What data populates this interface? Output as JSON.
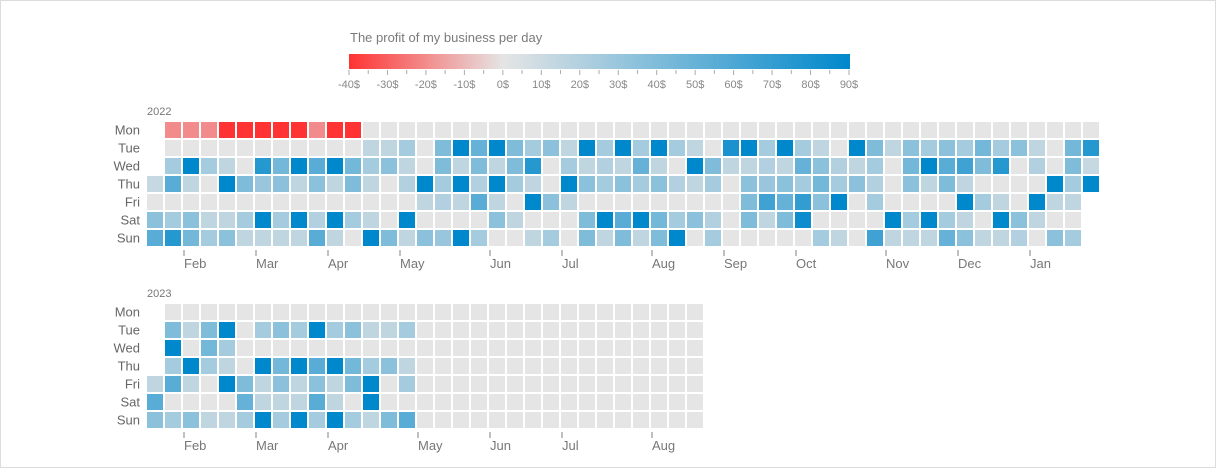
{
  "chart_data": {
    "type": "heatmap",
    "title": "The profit of my business per day",
    "legend": {
      "position": "top",
      "min": -40,
      "max": 90,
      "tick_labels": [
        "-40$",
        "-30$",
        "-20$",
        "-10$",
        "0$",
        "10$",
        "20$",
        "30$",
        "40$",
        "50$",
        "60$",
        "70$",
        "80$",
        "90$"
      ],
      "colors": {
        "min": "#ff3333",
        "zero": "#e5e5e5",
        "max": "#0088cc"
      }
    },
    "day_labels": [
      "Mon",
      "Tue",
      "Wed",
      "Thu",
      "Fri",
      "Sat",
      "Sun"
    ],
    "empty_color": "#e5e5e5",
    "years": [
      {
        "year": "2022",
        "months": [
          "Feb",
          "Mar",
          "Apr",
          "May",
          "Jun",
          "Jul",
          "Aug",
          "Sep",
          "Oct",
          "Nov",
          "Dec",
          "Jan"
        ],
        "rows": [
          [
            null,
            -20,
            -20,
            -20,
            -40,
            -40,
            -40,
            -40,
            -40,
            -20,
            -40,
            -40,
            0,
            0,
            0,
            0,
            0,
            0,
            0,
            0,
            0,
            0,
            0,
            0,
            0,
            0,
            0,
            0,
            0,
            0,
            0,
            0,
            0,
            0,
            0,
            0,
            0,
            0,
            0,
            0,
            0,
            0,
            0,
            0,
            0,
            0,
            0,
            0,
            0,
            0,
            0,
            0,
            0
          ],
          [
            null,
            0,
            0,
            0,
            0,
            0,
            0,
            0,
            0,
            0,
            0,
            0,
            15,
            15,
            25,
            0,
            40,
            90,
            50,
            90,
            40,
            25,
            35,
            15,
            90,
            25,
            90,
            25,
            90,
            25,
            15,
            0,
            80,
            90,
            25,
            90,
            25,
            15,
            0,
            90,
            40,
            15,
            35,
            25,
            35,
            25,
            45,
            25,
            35,
            15,
            0,
            45,
            75
          ],
          [
            null,
            25,
            90,
            25,
            15,
            0,
            75,
            45,
            90,
            55,
            90,
            45,
            25,
            35,
            15,
            0,
            40,
            15,
            40,
            15,
            40,
            75,
            0,
            25,
            15,
            20,
            15,
            50,
            15,
            0,
            90,
            40,
            15,
            15,
            20,
            15,
            50,
            35,
            20,
            15,
            25,
            0,
            45,
            90,
            55,
            65,
            40,
            75,
            0,
            20,
            0,
            40,
            12
          ],
          [
            12,
            55,
            15,
            0,
            90,
            40,
            30,
            35,
            15,
            35,
            15,
            40,
            15,
            0,
            20,
            90,
            25,
            90,
            20,
            90,
            25,
            15,
            0,
            90,
            35,
            25,
            35,
            25,
            35,
            20,
            15,
            25,
            0,
            35,
            30,
            35,
            25,
            45,
            25,
            35,
            20,
            0,
            35,
            15,
            40,
            15,
            0,
            0,
            0,
            0,
            90,
            25,
            90
          ],
          [
            0,
            0,
            0,
            0,
            0,
            0,
            0,
            0,
            0,
            0,
            0,
            0,
            0,
            0,
            0,
            15,
            20,
            15,
            55,
            15,
            0,
            90,
            35,
            15,
            0,
            0,
            0,
            0,
            0,
            0,
            0,
            0,
            0,
            40,
            65,
            50,
            70,
            35,
            90,
            0,
            25,
            0,
            0,
            0,
            0,
            90,
            25,
            15,
            0,
            90,
            15,
            15,
            null
          ],
          [
            35,
            25,
            35,
            15,
            15,
            25,
            90,
            25,
            90,
            20,
            90,
            25,
            15,
            0,
            90,
            0,
            0,
            0,
            0,
            35,
            15,
            0,
            0,
            0,
            40,
            90,
            55,
            90,
            45,
            25,
            35,
            20,
            0,
            40,
            15,
            40,
            85,
            0,
            0,
            0,
            0,
            90,
            25,
            90,
            25,
            15,
            0,
            90,
            35,
            15,
            0,
            0,
            null
          ],
          [
            55,
            75,
            45,
            25,
            35,
            15,
            15,
            15,
            15,
            55,
            15,
            0,
            90,
            40,
            15,
            35,
            30,
            90,
            25,
            0,
            0,
            15,
            25,
            0,
            40,
            15,
            40,
            15,
            40,
            90,
            0,
            25,
            0,
            0,
            0,
            0,
            0,
            25,
            15,
            0,
            65,
            15,
            15,
            15,
            50,
            35,
            15,
            15,
            20,
            0,
            35,
            25,
            null
          ]
        ]
      },
      {
        "year": "2023",
        "months": [
          "Feb",
          "Mar",
          "Apr",
          "May",
          "Jun",
          "Jul",
          "Aug"
        ],
        "rows": [
          [
            null,
            0,
            0,
            0,
            0,
            0,
            0,
            0,
            0,
            0,
            0,
            0,
            0,
            0,
            0,
            0,
            0,
            0,
            0,
            0,
            0,
            0,
            0,
            0,
            0,
            0,
            0,
            0,
            0,
            0,
            0
          ],
          [
            null,
            40,
            15,
            40,
            90,
            0,
            25,
            35,
            25,
            90,
            25,
            35,
            15,
            15,
            25,
            0,
            0,
            0,
            0,
            0,
            0,
            0,
            0,
            0,
            0,
            0,
            0,
            0,
            0,
            0,
            0
          ],
          [
            null,
            90,
            0,
            45,
            25,
            0,
            0,
            0,
            0,
            0,
            0,
            0,
            0,
            0,
            0,
            0,
            0,
            0,
            0,
            0,
            0,
            0,
            0,
            0,
            0,
            0,
            0,
            0,
            0,
            0,
            0
          ],
          [
            null,
            25,
            90,
            25,
            15,
            0,
            90,
            45,
            90,
            55,
            90,
            45,
            25,
            35,
            15,
            0,
            0,
            0,
            0,
            0,
            0,
            0,
            0,
            0,
            0,
            0,
            0,
            0,
            0,
            0,
            0
          ],
          [
            15,
            55,
            15,
            0,
            90,
            40,
            15,
            35,
            15,
            35,
            15,
            40,
            90,
            0,
            25,
            0,
            0,
            0,
            0,
            0,
            0,
            0,
            0,
            0,
            0,
            0,
            0,
            0,
            0,
            0,
            0
          ],
          [
            55,
            0,
            0,
            0,
            0,
            50,
            15,
            15,
            15,
            55,
            15,
            0,
            90,
            0,
            0,
            0,
            0,
            0,
            0,
            0,
            0,
            0,
            0,
            0,
            0,
            0,
            0,
            0,
            0,
            0,
            0
          ],
          [
            35,
            25,
            35,
            15,
            15,
            25,
            90,
            25,
            90,
            25,
            90,
            25,
            15,
            40,
            55,
            0,
            0,
            0,
            0,
            0,
            0,
            0,
            0,
            0,
            0,
            0,
            0,
            0,
            0,
            0,
            0
          ]
        ]
      }
    ]
  }
}
